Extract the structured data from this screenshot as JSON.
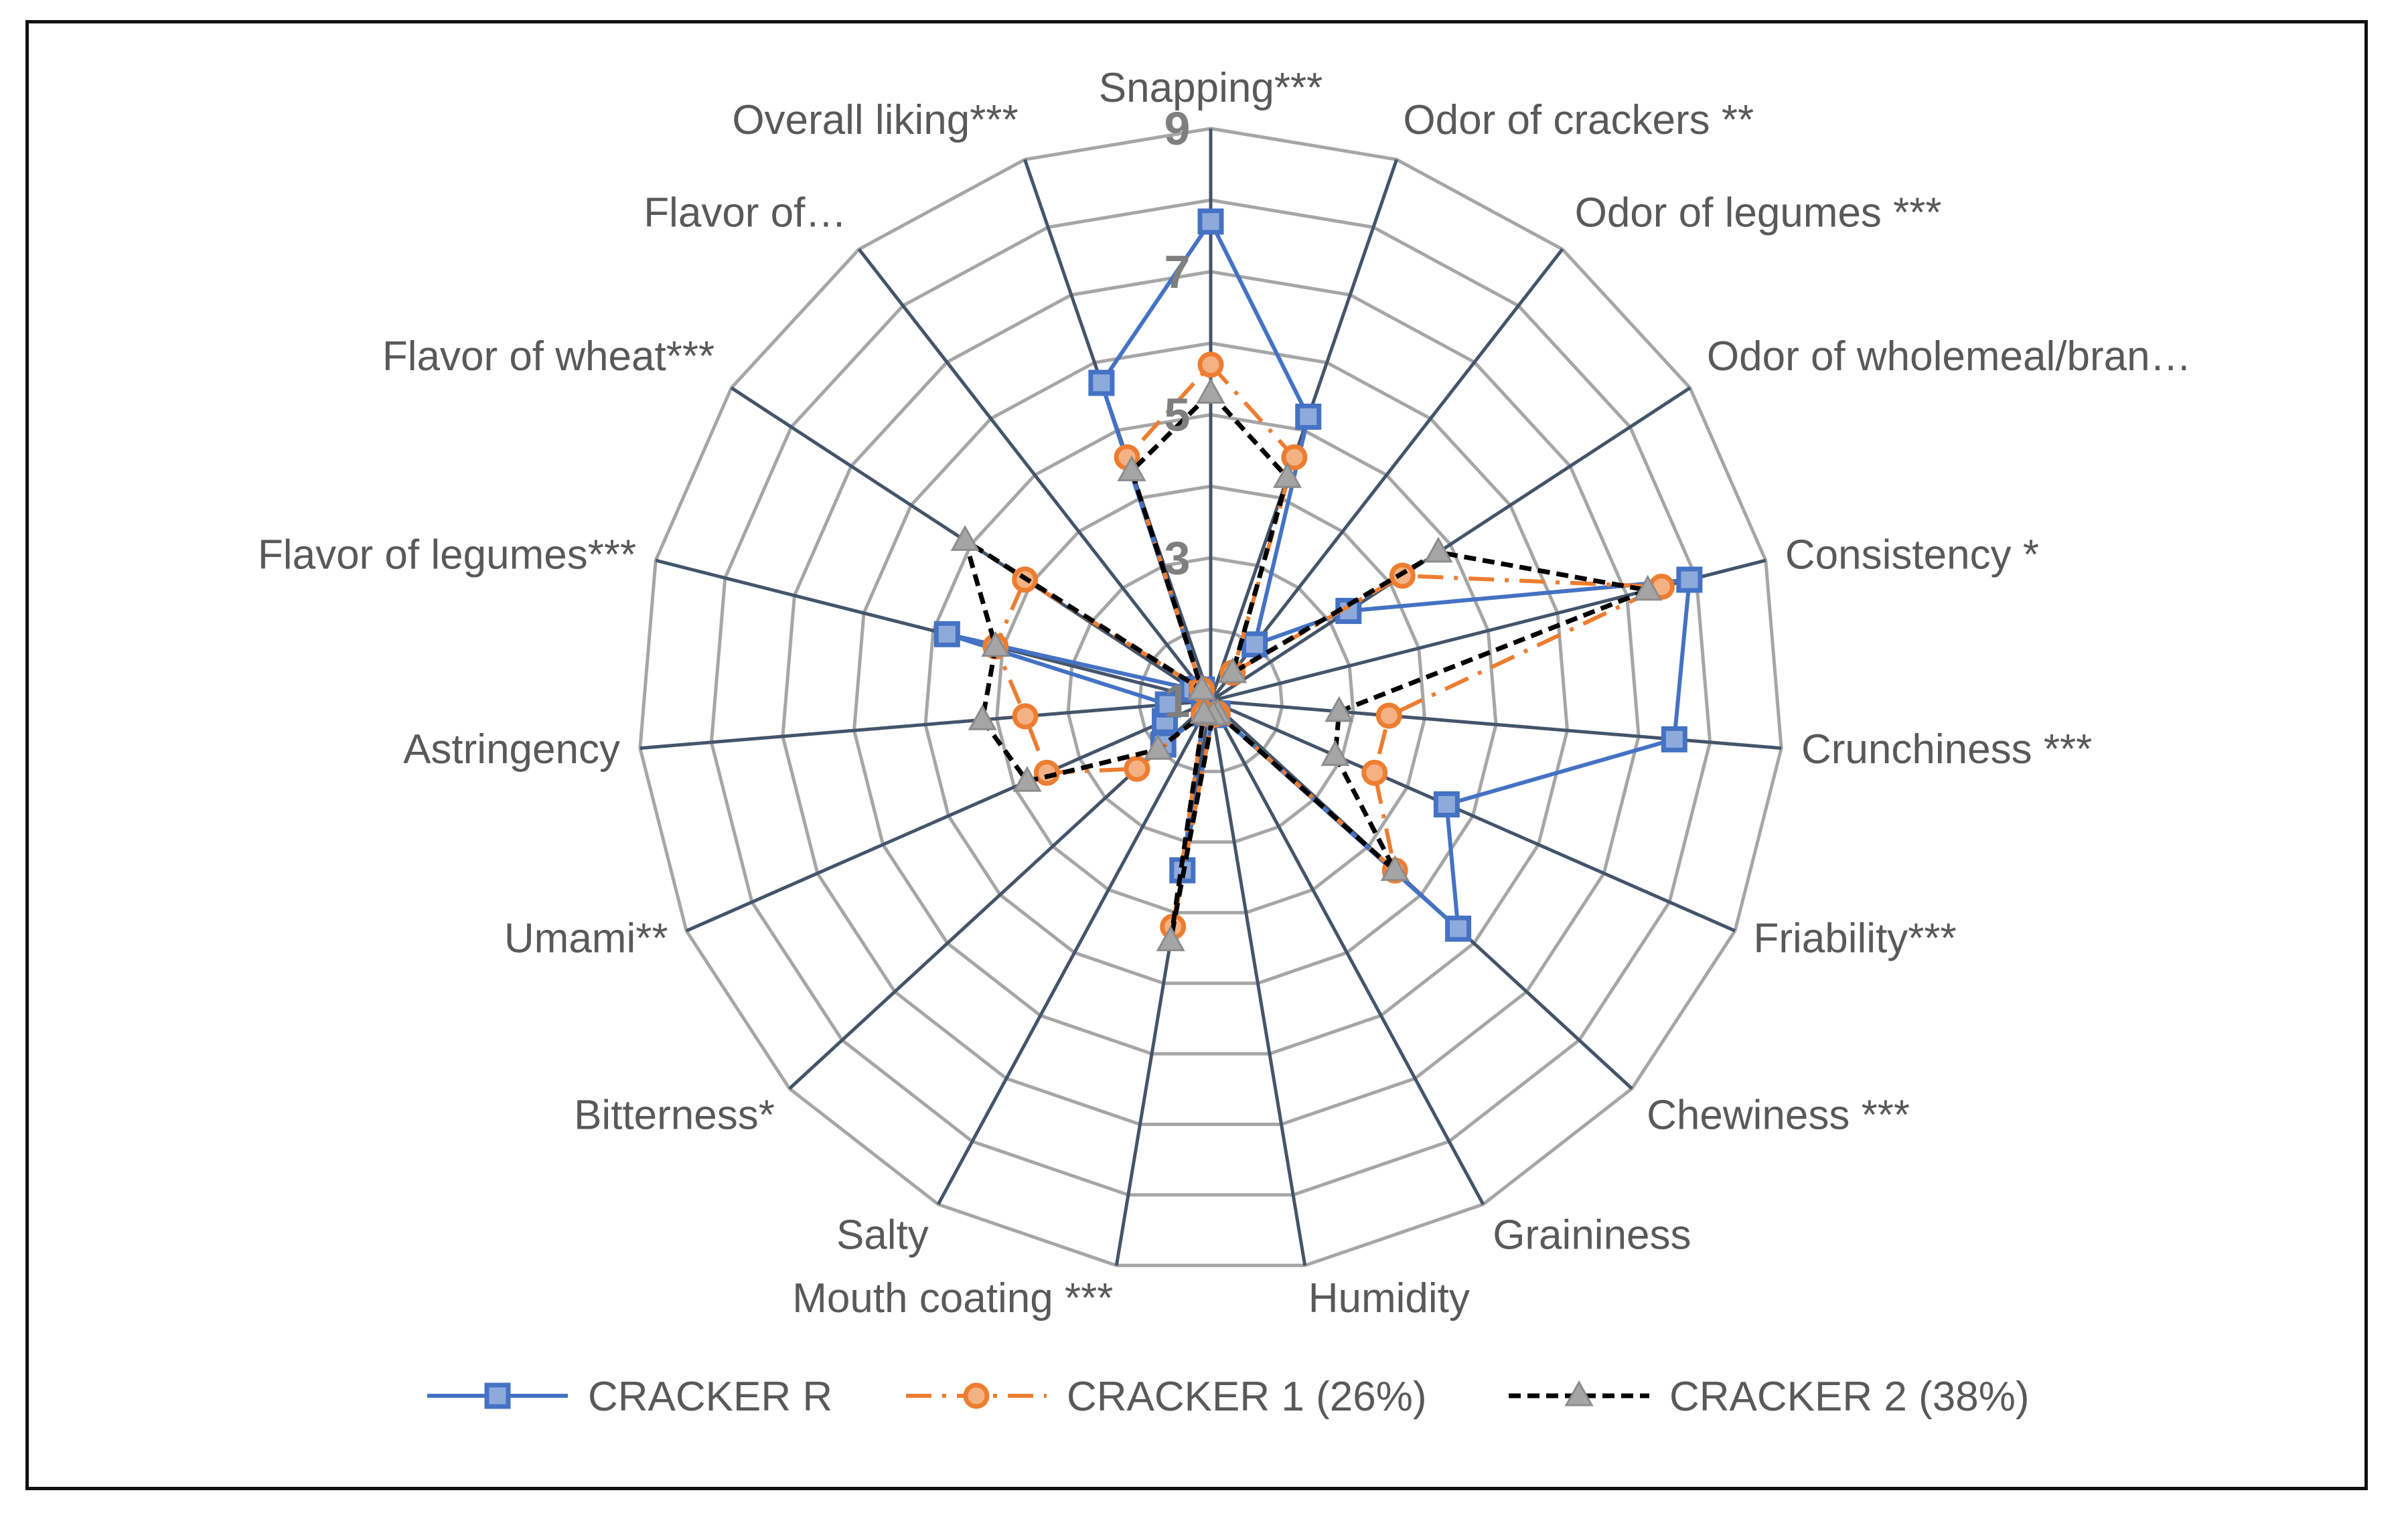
{
  "chart_data": {
    "type": "radar",
    "title": "",
    "rlim": [
      1,
      9
    ],
    "ticks": [
      1,
      3,
      5,
      7,
      9
    ],
    "tick_labels": [
      "1",
      "3",
      "5",
      "7",
      "9"
    ],
    "axes": [
      "Snapping***",
      "Odor of crackers **",
      "Odor of legumes ***",
      "Odor of wholemeal/bran…",
      "Consistency *",
      "Crunchiness ***",
      "Friability***",
      "Chewiness ***",
      "Graininess",
      "Humidity",
      "Mouth coating ***",
      "Salty",
      "Bitterness*",
      "Umami**",
      "Astringency",
      "Flavor of legumes***",
      "Flavor of wheat***",
      "Flavor of…",
      "Overall liking***"
    ],
    "series": [
      {
        "name": "CRACKER R",
        "color": "#4472c4",
        "values": [
          7.7,
          5.2,
          2.0,
          3.3,
          7.9,
          7.5,
          4.6,
          5.7,
          1.2,
          1.2,
          3.4,
          1.2,
          1.9,
          1.7,
          1.6,
          4.8,
          1.3,
          1.2,
          5.7
        ]
      },
      {
        "name": "CRACKER 1 (26%)",
        "color": "#ed7d31",
        "values": [
          5.7,
          4.6,
          1.5,
          4.2,
          7.5,
          3.5,
          3.5,
          4.5,
          1.2,
          1.2,
          4.2,
          1.2,
          2.4,
          3.5,
          3.6,
          4.1,
          4.1,
          1.2,
          4.6
        ]
      },
      {
        "name": "CRACKER 2 (38%)",
        "color": "#000000",
        "values": [
          5.3,
          4.3,
          1.5,
          4.8,
          7.3,
          2.8,
          2.9,
          4.5,
          1.2,
          1.2,
          4.4,
          1.2,
          2.0,
          3.8,
          4.2,
          4.1,
          5.1,
          1.2,
          4.4
        ]
      }
    ]
  }
}
